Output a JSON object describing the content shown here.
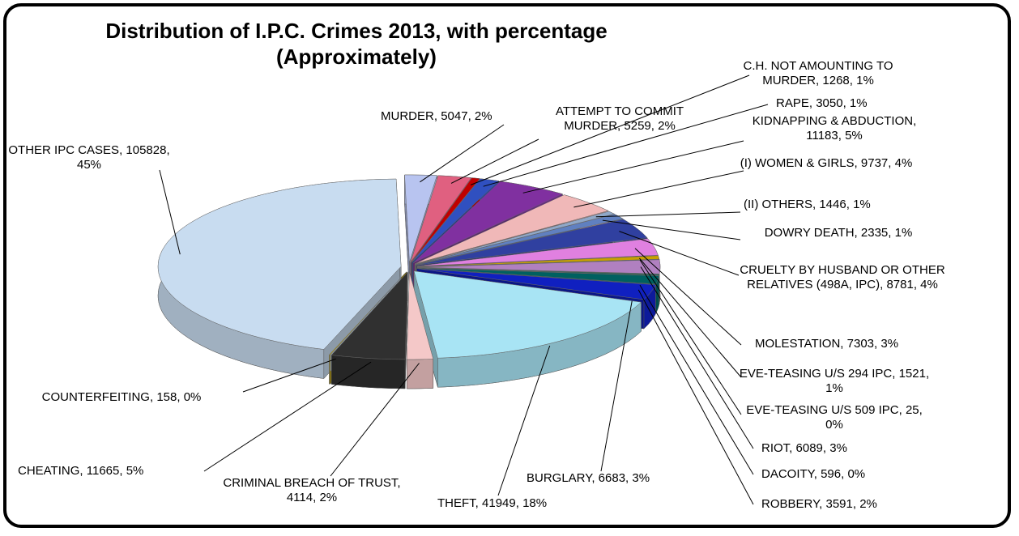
{
  "chart_data": {
    "type": "pie3d",
    "title": "Distribution of I.P.C. Crimes 2013, with percentage (Approximately)",
    "categories": [
      "MURDER",
      "ATTEMPT TO COMMIT MURDER",
      "C.H. NOT AMOUNTING TO MURDER",
      "RAPE",
      "KIDNAPPING & ABDUCTION",
      "(I) WOMEN & GIRLS",
      "(II) OTHERS",
      "DOWRY DEATH",
      "CRUELTY BY HUSBAND OR OTHER RELATIVES (498A, IPC)",
      "MOLESTATION",
      "EVE-TEASING U/S 294 IPC",
      "EVE-TEASING U/S 509 IPC",
      "RIOT",
      "DACOITY",
      "ROBBERY",
      "BURGLARY",
      "THEFT",
      "CRIMINAL BREACH OF TRUST",
      "CHEATING",
      "COUNTERFEITING",
      "OTHER IPC CASES"
    ],
    "values": [
      5047,
      5259,
      1268,
      3050,
      11183,
      9737,
      1446,
      2335,
      8781,
      7303,
      1521,
      25,
      6089,
      596,
      3591,
      6683,
      41949,
      4114,
      11665,
      158,
      105828
    ],
    "value_labels": [
      "2%",
      "2%",
      "1%",
      "1%",
      "5%",
      "4%",
      "1%",
      "1%",
      "4%",
      "3%",
      "1%",
      "0%",
      "3%",
      "0%",
      "2%",
      "3%",
      "18%",
      "2%",
      "5%",
      "0%",
      "45%"
    ],
    "colors": [
      "#b8c4f0",
      "#e06080",
      "#c00000",
      "#3050c0",
      "#8030a0",
      "#f0b8b8",
      "#90a8c8",
      "#6080c0",
      "#3040a0",
      "#e080e0",
      "#c8a000",
      "#404040",
      "#b080c0",
      "#206050",
      "#006060",
      "#1020c0",
      "#a8e4f4",
      "#f4c8c8",
      "#303030",
      "#c0a000",
      "#c8dcf0"
    ]
  }
}
